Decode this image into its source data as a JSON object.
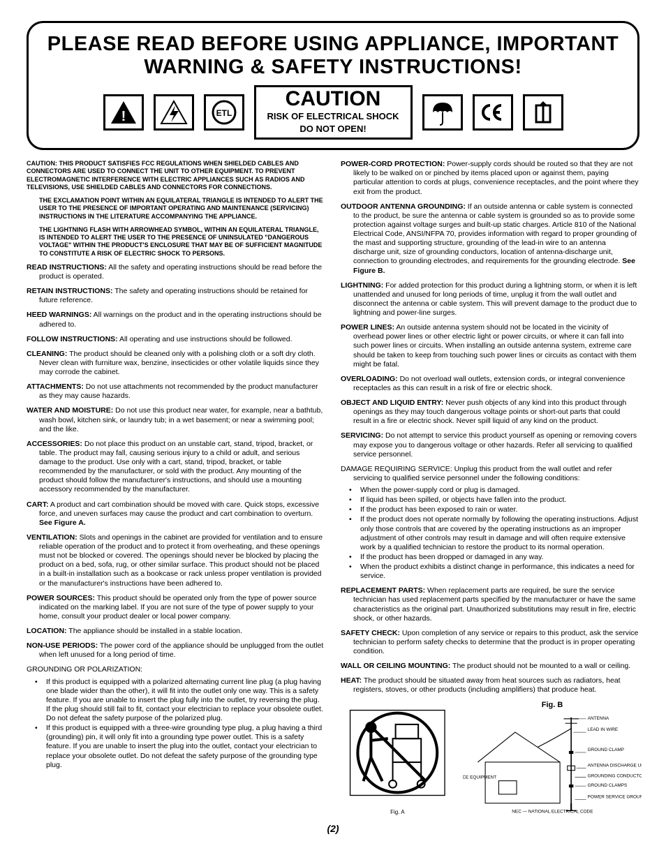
{
  "header": {
    "title": "PLEASE READ BEFORE USING APPLIANCE, IMPORTANT WARNING & SAFETY INSTRUCTIONS!",
    "caution_title": "CAUTION",
    "caution_sub1": "RISK OF ELECTRICAL SHOCK",
    "caution_sub2": "DO NOT OPEN!"
  },
  "top_caution": {
    "line1": "CAUTION: THIS PRODUCT SATISFIES FCC REGULATIONS WHEN SHIELDED CABLES AND CONNECTORS ARE USED TO CONNECT THE UNIT TO OTHER EQUIPMENT. TO PREVENT ELECTROMAGNETIC INTERFERENCE WITH ELECTRIC APPLIANCES SUCH AS RADIOS AND TELEVISIONS, USE SHIELDED CABLES AND CONNECTORS FOR CONNECTIONS.",
    "line2": "THE EXCLAMATION POINT WITHIN AN EQUILATERAL TRIANGLE IS INTENDED TO ALERT THE USER TO THE PRESENCE OF IMPORTANT OPERATING AND MAINTENANCE (SERVICING) INSTRUCTIONS IN THE LITERATURE ACCOMPANYING THE APPLIANCE.",
    "line3": "THE LIGHTNING FLASH WITH ARROWHEAD SYMBOL, WITHIN AN EQUILATERAL TRIANGLE, IS INTENDED TO ALERT THE USER TO THE PRESENCE OF UNINSULATED \"DANGEROUS VOLTAGE\" WITHIN THE PRODUCT'S ENCLOSURE THAT MAY BE OF SUFFICIENT MAGNITUDE TO CONSTITUTE A RISK OF ELECTRIC SHOCK TO PERSONS."
  },
  "left": [
    {
      "label": "READ INSTRUCTIONS:",
      "text": " All the safety and operating instructions should be read before the product is operated."
    },
    {
      "label": "RETAIN INSTRUCTIONS:",
      "text": "  The safety and operating instructions should be retained for future reference."
    },
    {
      "label": "HEED WARNINGS:",
      "text": "  All warnings on the product and in the operating instructions should be adhered to."
    },
    {
      "label": "FOLLOW INSTRUCTIONS:",
      "text": "  All operating and use instructions should be followed."
    },
    {
      "label": "CLEANING:",
      "text": "  The product should be cleaned only with a polishing cloth or a soft dry cloth. Never clean with furniture wax, benzine, insecticides or other volatile liquids since they may corrode the cabinet."
    },
    {
      "label": "ATTACHMENTS:",
      "text": "  Do not use attachments not recommended by the product manufacturer as they may cause hazards."
    },
    {
      "label": "WATER AND MOISTURE:",
      "text": "  Do not use this product near water, for example, near a bathtub, wash bowl, kitchen sink, or laundry tub; in a wet basement; or near a swimming pool; and the like."
    },
    {
      "label": "ACCESSORIES:",
      "text": "  Do not place this product on an unstable cart, stand, tripod, bracket, or table. The product may fall, causing serious injury to a child or adult, and serious damage to the product. Use only with a cart, stand, tripod, bracket, or table recommended by the manufacturer, or sold with the product. Any mounting of the product should follow the manufacturer's instructions, and should use a mounting accessory recommended by the manufacturer."
    },
    {
      "label": "CART:",
      "text": "  A product and cart combination should be moved with care.  Quick stops, excessive force, and uneven surfaces may cause the product and cart combination to overturn.",
      "bold_suffix": " See Figure A."
    },
    {
      "label": "VENTILATION:",
      "text": "  Slots and openings in the cabinet are provided for ventilation and to ensure reliable operation of the product and to protect it from overheating, and these openings must not be blocked or covered. The openings should never be blocked by placing the product on a bed, sofa, rug, or other similar surface. This product should not be placed in a built-in installation such as a bookcase or rack unless proper ventilation is provided or the manufacturer's instructions have been adhered to."
    },
    {
      "label": "POWER SOURCES:",
      "text": "  This product should be operated only from the type of power source indicated on the marking label. If you are not sure of the type of power supply to your home, consult your product dealer or local power company."
    },
    {
      "label": "LOCATION:",
      "text": "  The appliance should be installed in a stable location."
    },
    {
      "label": "NON-USE PERIODS:",
      "text": "  The power cord of the appliance should be unplugged from the outlet when left unused for a long period of time."
    }
  ],
  "grounding": {
    "label": "GROUNDING OR POLARIZATION:",
    "bullets": [
      "If this product is equipped with a polarized alternating current line plug (a plug having one blade wider than the other), it will fit into the outlet only one way. This is a safety feature. If you are unable to insert the plug fully into the outlet, try reversing the plug. If the plug should still fail to fit, contact your electrician to replace your obsolete outlet. Do not defeat the safety purpose of the polarized plug.",
      "If this product is equipped with a three-wire grounding type plug, a plug having a third (grounding) pin, it will only fit into a grounding type power outlet.  This is a safety feature. If you are unable to insert the plug into the outlet, contact your electrician to replace your obsolete outlet. Do not defeat the safety purpose of the grounding type plug."
    ]
  },
  "right": [
    {
      "label": "POWER-CORD PROTECTION:",
      "text": "  Power-supply cords should be routed so that they are not likely to be walked on or pinched by items placed upon or against them, paying particular attention to cords at plugs, convenience receptacles, and the point where they exit from the product."
    },
    {
      "label": "OUTDOOR ANTENNA GROUNDING:",
      "text": "  If an outside antenna or cable system is connected to the product, be sure the antenna or cable system is grounded so as to provide some protection against voltage surges and built-up static charges. Article 810 of the National Electrical Code, ANSI/NFPA 70, provides information with regard to proper grounding of the mast and supporting structure, grounding of the lead-in wire to an antenna discharge unit, size of grounding conductors, location of antenna-discharge unit, connection to grounding electrodes, and requirements for the grounding electrode.",
      "bold_suffix": "  See Figure B."
    },
    {
      "label": "LIGHTNING:",
      "text": "  For added protection for this product during a lightning storm, or when it is left unattended and unused for long periods of time, unplug it from the wall outlet and disconnect the antenna or cable system. This will prevent damage to the product due to lightning and power-line surges."
    },
    {
      "label": "POWER LINES:",
      "text": "  An outside antenna system should not be located in the vicinity of overhead power lines or other electric light or power circuits, or where it can fall into such power lines or circuits. When installing an outside antenna system, extreme care should be taken to keep from touching such power lines or circuits as contact with them might be fatal."
    },
    {
      "label": "OVERLOADING:",
      "text": "  Do not overload wall outlets, extension cords, or integral convenience receptacles as this can result in a risk of fire or electric shock."
    },
    {
      "label": "OBJECT AND LIQUID ENTRY:",
      "text": "  Never push objects of any kind into this product through openings as they may touch dangerous voltage points or short-out parts that could result in a fire or electric shock.  Never spill liquid of any kind on the product."
    },
    {
      "label": "SERVICING:",
      "text": "  Do not attempt to service this product yourself as opening or removing covers may expose you to dangerous voltage or other hazards. Refer all servicing to qualified service personnel."
    }
  ],
  "damage": {
    "label": "DAMAGE REQUIRING SERVICE:",
    "text": "  Unplug this product from the wall outlet and refer servicing to qualified service personnel under the following conditions:",
    "bullets": [
      "When the power-supply cord or plug is damaged.",
      "If liquid has been spilled, or objects have fallen into the product.",
      "If the product has been exposed to rain or water.",
      "If the product does not operate normally by following the operating instructions.  Adjust only those controls that are covered by the operating instructions as an improper adjustment of other controls may result in damage and will often require extensive work by a qualified technician to restore the product to its normal operation.",
      "If the product has been dropped or damaged in any way.",
      "When the product exhibits a distinct change in performance, this indicates a need for service."
    ]
  },
  "right2": [
    {
      "label": "REPLACEMENT PARTS:",
      "text": "  When replacement parts are required, be sure the service technician has used replacement parts specified by the manufacturer or have the same characteristics as the original part.  Unauthorized substitutions may result in fire, electric shock, or other hazards."
    },
    {
      "label": "SAFETY CHECK:",
      "text": "  Upon completion of any service or repairs to this product, ask the service technician to perform safety checks to determine that the product is in proper operating condition."
    },
    {
      "label": "WALL OR CEILING MOUNTING:",
      "text": "  The product should not be mounted to a wall or ceiling."
    },
    {
      "label": "HEAT:",
      "text": "  The product should be situated away from heat sources such as radiators, heat registers, stoves, or other products (including amplifiers) that produce heat."
    }
  ],
  "figA": {
    "caption": "Fig. A"
  },
  "figB": {
    "title": "Fig. B",
    "labels": {
      "antenna": "ANTENNA",
      "leadin": "LEAD IN WIRE",
      "gclamp": "GROUND CLAMP",
      "adu": "ANTENNA DISCHARGE UNIT (NEC SECTION 810-20)",
      "gcond": "GROUNDING CONDUCTORS (NEC SECTION 810-21)",
      "gclamps": "GROUND CLAMPS",
      "psge": "POWER SERVICE GROUNDING ELECTRODE SYSTEM (NEC ART 250, PART H)",
      "ese": "ELECTRIC SERVICE EQUIPMENT",
      "nec": "NEC — NATIONAL ELECTRICAL CODE"
    }
  },
  "page": "(2)"
}
